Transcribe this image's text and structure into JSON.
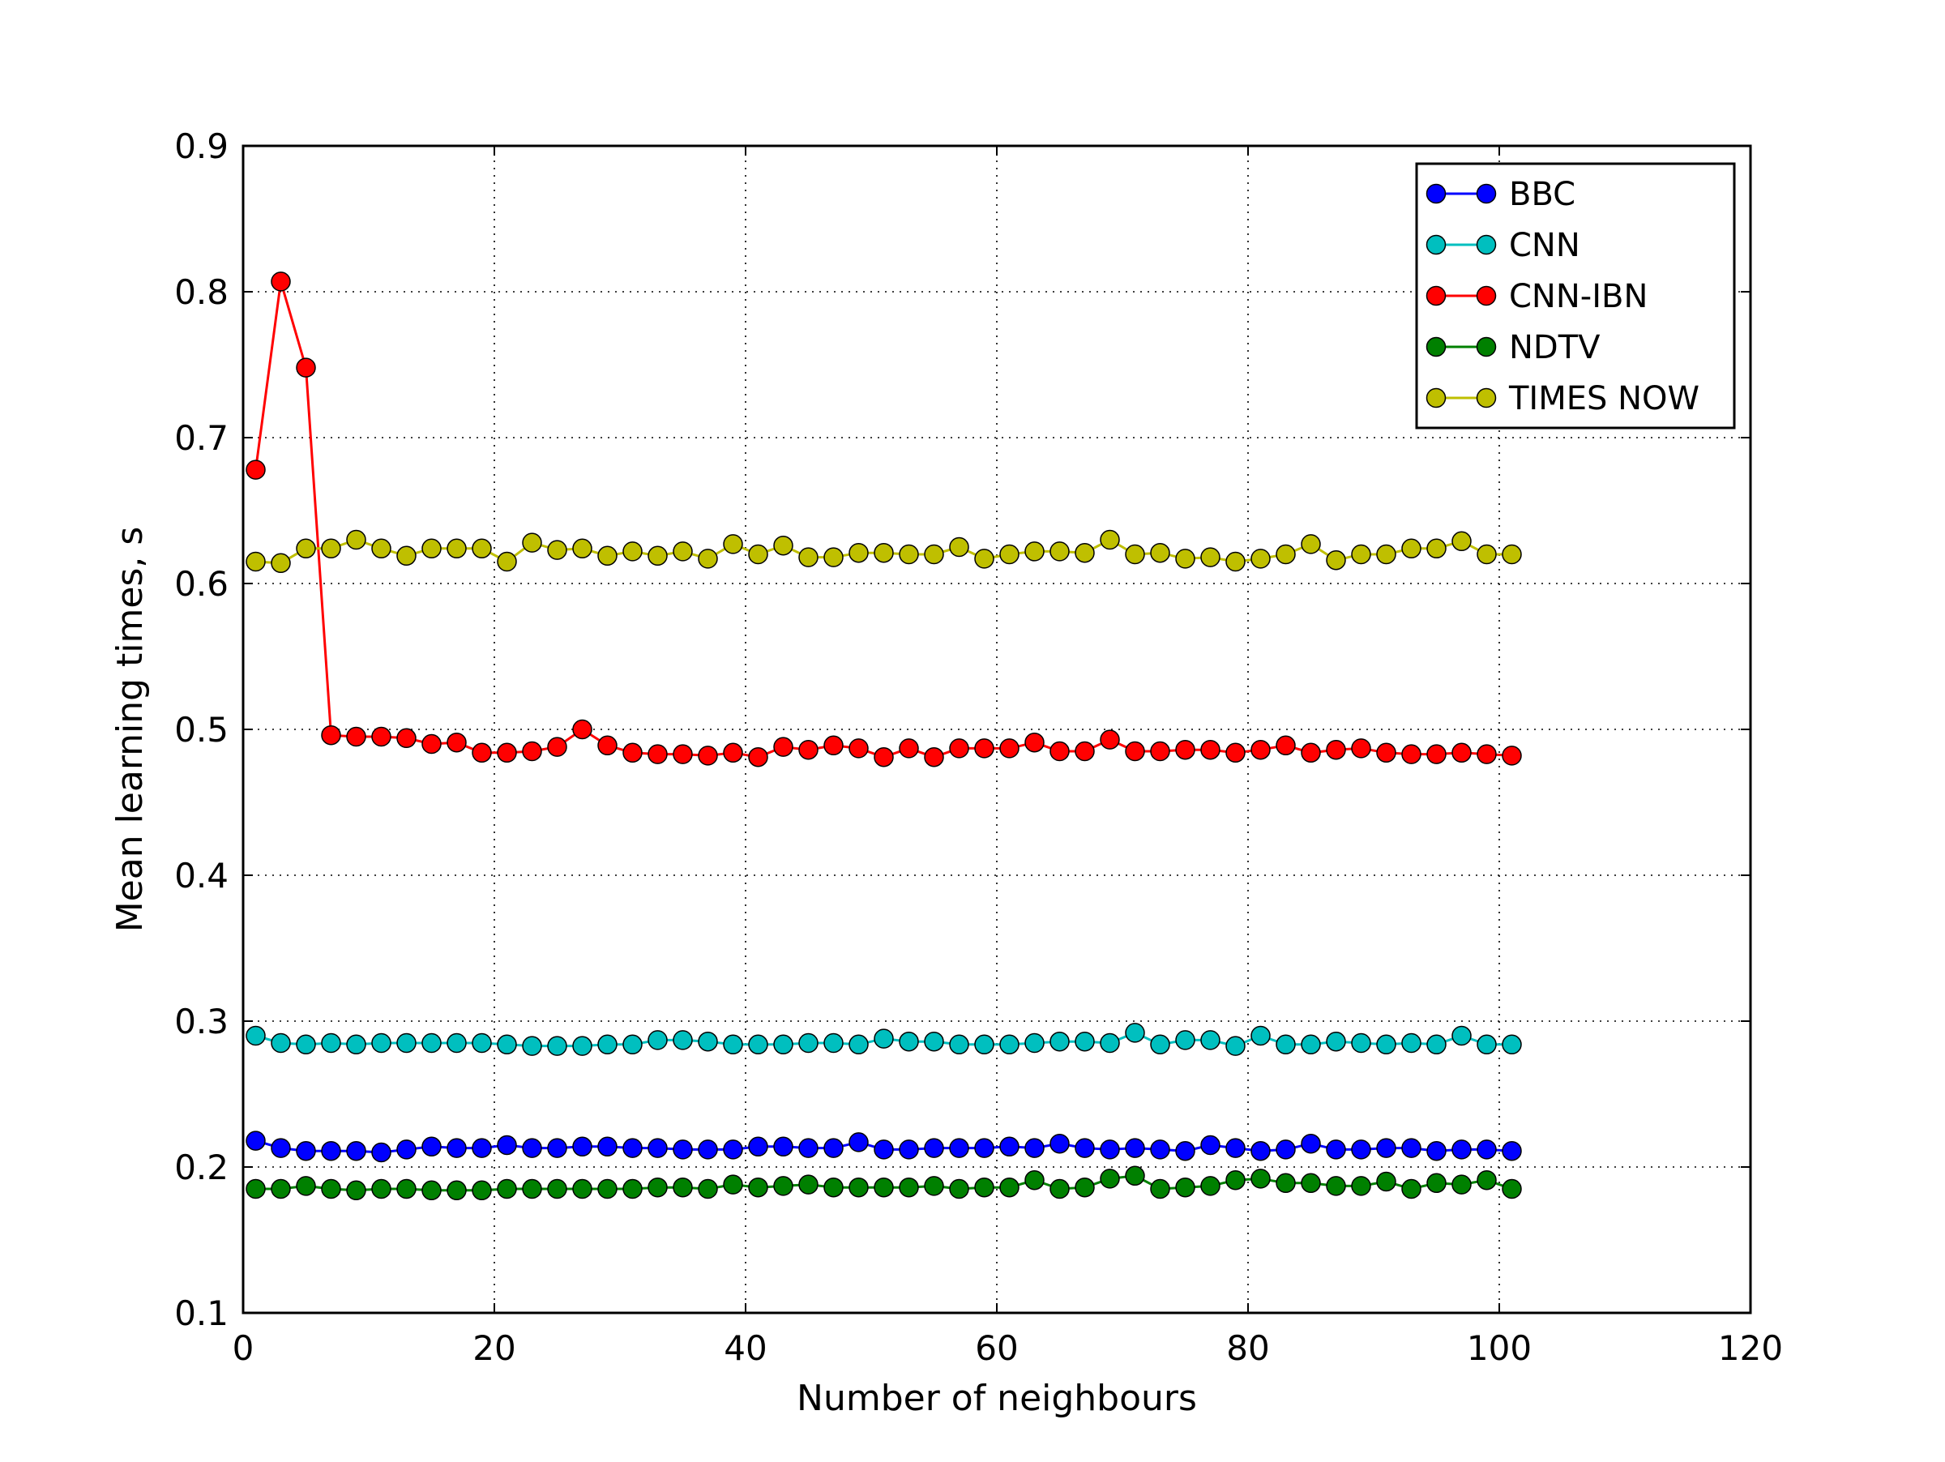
{
  "chart_data": {
    "type": "line",
    "title": "",
    "xlabel": "Number of neighbours",
    "ylabel": "Mean learning times, s",
    "xlim": [
      0,
      120
    ],
    "ylim": [
      0.1,
      0.9
    ],
    "xticks": [
      0,
      20,
      40,
      60,
      80,
      100,
      120
    ],
    "yticks": [
      0.1,
      0.2,
      0.3,
      0.4,
      0.5,
      0.6,
      0.7,
      0.8,
      0.9
    ],
    "xtick_labels": [
      "0",
      "20",
      "40",
      "60",
      "80",
      "100",
      "120"
    ],
    "ytick_labels": [
      "0.1",
      "0.2",
      "0.3",
      "0.4",
      "0.5",
      "0.6",
      "0.7",
      "0.8",
      "0.9"
    ],
    "grid": true,
    "legend_position": "top-right",
    "x": [
      1,
      3,
      5,
      7,
      9,
      11,
      13,
      15,
      17,
      19,
      21,
      23,
      25,
      27,
      29,
      31,
      33,
      35,
      37,
      39,
      41,
      43,
      45,
      47,
      49,
      51,
      53,
      55,
      57,
      59,
      61,
      63,
      65,
      67,
      69,
      71,
      73,
      75,
      77,
      79,
      81,
      83,
      85,
      87,
      89,
      91,
      93,
      95,
      97,
      99,
      101
    ],
    "series": [
      {
        "name": "BBC",
        "color": "#0000ff",
        "values": [
          0.218,
          0.213,
          0.211,
          0.211,
          0.211,
          0.21,
          0.212,
          0.214,
          0.213,
          0.213,
          0.215,
          0.213,
          0.213,
          0.214,
          0.214,
          0.213,
          0.213,
          0.212,
          0.212,
          0.212,
          0.214,
          0.214,
          0.213,
          0.213,
          0.217,
          0.212,
          0.212,
          0.213,
          0.213,
          0.213,
          0.214,
          0.213,
          0.216,
          0.213,
          0.212,
          0.213,
          0.212,
          0.211,
          0.215,
          0.213,
          0.211,
          0.212,
          0.216,
          0.212,
          0.212,
          0.213,
          0.213,
          0.211,
          0.212,
          0.212,
          0.211
        ]
      },
      {
        "name": "CNN",
        "color": "#00bfbf",
        "values": [
          0.29,
          0.285,
          0.284,
          0.285,
          0.284,
          0.285,
          0.285,
          0.285,
          0.285,
          0.285,
          0.284,
          0.283,
          0.283,
          0.283,
          0.284,
          0.284,
          0.287,
          0.287,
          0.286,
          0.284,
          0.284,
          0.284,
          0.285,
          0.285,
          0.284,
          0.288,
          0.286,
          0.286,
          0.284,
          0.284,
          0.284,
          0.285,
          0.286,
          0.286,
          0.285,
          0.292,
          0.284,
          0.287,
          0.287,
          0.283,
          0.29,
          0.284,
          0.284,
          0.286,
          0.285,
          0.284,
          0.285,
          0.284,
          0.29,
          0.284,
          0.284
        ]
      },
      {
        "name": "CNN-IBN",
        "color": "#ff0000",
        "values": [
          0.678,
          0.807,
          0.748,
          0.496,
          0.495,
          0.495,
          0.494,
          0.49,
          0.491,
          0.484,
          0.484,
          0.485,
          0.488,
          0.5,
          0.489,
          0.484,
          0.483,
          0.483,
          0.482,
          0.484,
          0.481,
          0.488,
          0.486,
          0.489,
          0.487,
          0.481,
          0.487,
          0.481,
          0.487,
          0.487,
          0.487,
          0.491,
          0.485,
          0.485,
          0.493,
          0.485,
          0.485,
          0.486,
          0.486,
          0.484,
          0.486,
          0.489,
          0.484,
          0.486,
          0.487,
          0.484,
          0.483,
          0.483,
          0.484,
          0.483,
          0.482
        ]
      },
      {
        "name": "NDTV",
        "color": "#008000",
        "values": [
          0.185,
          0.185,
          0.187,
          0.185,
          0.184,
          0.185,
          0.185,
          0.184,
          0.184,
          0.184,
          0.185,
          0.185,
          0.185,
          0.185,
          0.185,
          0.185,
          0.186,
          0.186,
          0.185,
          0.188,
          0.186,
          0.187,
          0.188,
          0.186,
          0.186,
          0.186,
          0.186,
          0.187,
          0.185,
          0.186,
          0.186,
          0.191,
          0.185,
          0.186,
          0.192,
          0.194,
          0.185,
          0.186,
          0.187,
          0.191,
          0.192,
          0.189,
          0.189,
          0.187,
          0.187,
          0.19,
          0.185,
          0.189,
          0.188,
          0.191,
          0.185
        ]
      },
      {
        "name": "TIMES NOW",
        "color": "#bfbf00",
        "values": [
          0.615,
          0.614,
          0.624,
          0.624,
          0.63,
          0.624,
          0.619,
          0.624,
          0.624,
          0.624,
          0.615,
          0.628,
          0.623,
          0.624,
          0.619,
          0.622,
          0.619,
          0.622,
          0.617,
          0.627,
          0.62,
          0.626,
          0.618,
          0.618,
          0.621,
          0.621,
          0.62,
          0.62,
          0.625,
          0.617,
          0.62,
          0.622,
          0.622,
          0.621,
          0.63,
          0.62,
          0.621,
          0.617,
          0.618,
          0.615,
          0.617,
          0.62,
          0.627,
          0.616,
          0.62,
          0.62,
          0.624,
          0.624,
          0.629,
          0.62,
          0.62
        ]
      }
    ]
  }
}
